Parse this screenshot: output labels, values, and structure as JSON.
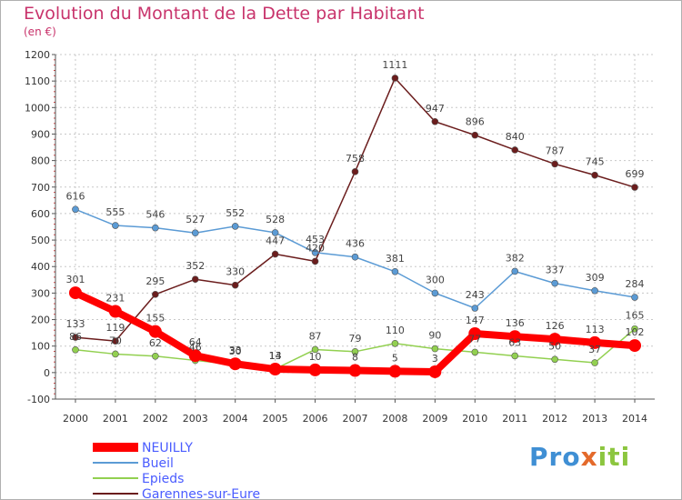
{
  "title": "Evolution du Montant de la Dette par Habitant",
  "subtitle": "(en €)",
  "logo": {
    "p": "Pro",
    "x": "x",
    "rest": "iti"
  },
  "chart_data": {
    "type": "line",
    "x": [
      "2000",
      "2001",
      "2002",
      "2003",
      "2004",
      "2005",
      "2006",
      "2007",
      "2008",
      "2009",
      "2010",
      "2011",
      "2012",
      "2013",
      "2014"
    ],
    "ylim": [
      -100,
      1200
    ],
    "yticks": [
      -100,
      0,
      100,
      200,
      300,
      400,
      500,
      600,
      700,
      800,
      900,
      1000,
      1100,
      1200
    ],
    "grid": true,
    "legend_position": "bottom-left",
    "series": [
      {
        "name": "NEUILLY",
        "color": "#ff0000",
        "width": 8,
        "marker": 7,
        "values": [
          301,
          231,
          155,
          64,
          33,
          13,
          10,
          8,
          5,
          3,
          147,
          136,
          126,
          113,
          102
        ]
      },
      {
        "name": "Bueil",
        "color": "#5b9bd5",
        "width": 1.5,
        "marker": 3.5,
        "values": [
          616,
          555,
          546,
          527,
          552,
          528,
          453,
          436,
          381,
          300,
          243,
          382,
          337,
          309,
          284
        ]
      },
      {
        "name": "Epieds",
        "color": "#92d050",
        "width": 1.5,
        "marker": 3.5,
        "values": [
          86,
          70,
          62,
          46,
          30,
          14,
          87,
          79,
          110,
          90,
          77,
          63,
          50,
          37,
          165
        ]
      },
      {
        "name": "Garennes-sur-Eure",
        "color": "#6b1d1d",
        "width": 1.5,
        "marker": 3.5,
        "values": [
          133,
          119,
          295,
          352,
          330,
          447,
          420,
          758,
          1111,
          947,
          896,
          840,
          787,
          745,
          699
        ]
      }
    ]
  }
}
